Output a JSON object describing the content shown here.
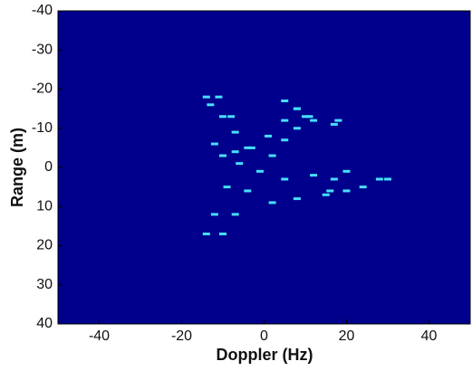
{
  "chart_data": {
    "type": "scatter",
    "xlabel": "Doppler (Hz)",
    "ylabel": "Range (m)",
    "background": "#00008c",
    "color": "#45e0ff",
    "y_reversed": true,
    "xlim": [
      -50,
      50
    ],
    "xticks": [
      -40,
      -20,
      0,
      20,
      40
    ],
    "ylim": [
      -40,
      40
    ],
    "yticks": [
      -40,
      -30,
      -20,
      -10,
      0,
      10,
      20,
      30,
      40
    ],
    "x": [
      -14,
      -12,
      -9,
      -6,
      -3,
      1,
      5,
      8,
      -10,
      -7,
      -4,
      -1,
      2,
      5,
      8,
      11,
      -4,
      -7,
      -10,
      -13,
      -14,
      -11,
      -8,
      -12,
      -10,
      -7,
      5,
      12,
      20,
      28,
      30,
      24,
      16,
      8,
      2,
      15,
      17,
      20,
      5,
      8,
      12,
      17,
      18,
      10
    ],
    "values": [
      17,
      12,
      5,
      -1,
      -5,
      -8,
      -12,
      -15,
      17,
      12,
      6,
      1,
      -3,
      -7,
      -10,
      -13,
      -5,
      -9,
      -13,
      -16,
      -18,
      -18,
      -13,
      -6,
      -3,
      -4,
      3,
      2,
      1,
      3,
      3,
      5,
      6,
      8,
      9,
      7,
      3,
      6,
      -17,
      -15,
      -12,
      -11,
      -12,
      -13
    ]
  }
}
